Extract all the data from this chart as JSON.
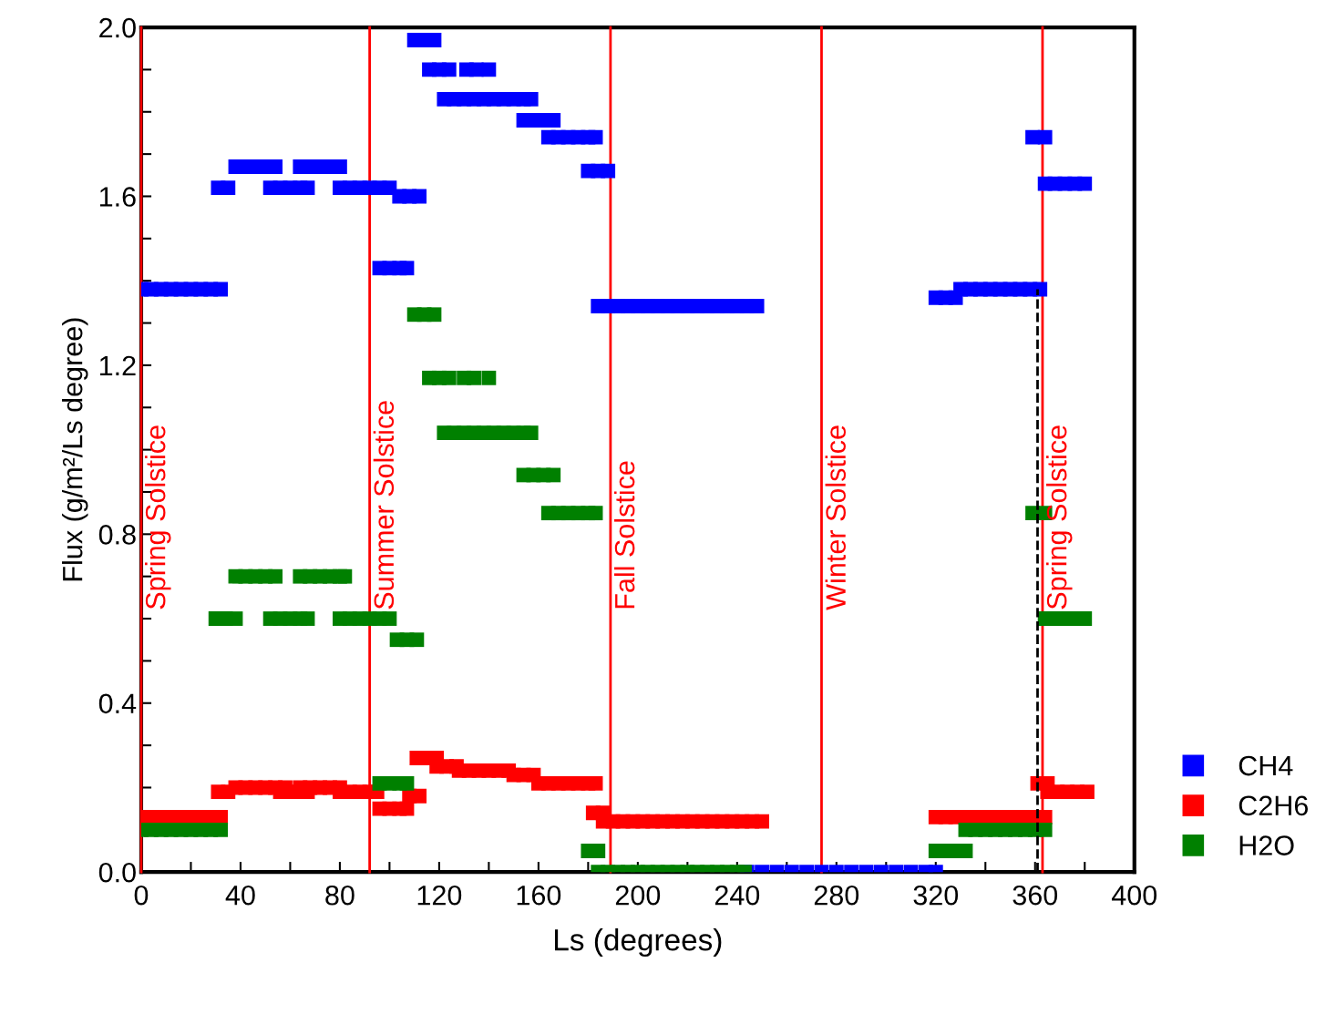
{
  "chart_data": {
    "type": "scatter",
    "xlabel": "Ls (degrees)",
    "ylabel": "Flux (g/m²/Ls degree)",
    "xlim": [
      0,
      400
    ],
    "ylim": [
      0,
      2.0
    ],
    "xticks": [
      0,
      {
        "value": 20,
        "label": null
      },
      40,
      {
        "value": 60,
        "label": null
      },
      80,
      {
        "value": 100,
        "label": null
      },
      120,
      {
        "value": 140,
        "label": null
      },
      160,
      {
        "value": 180,
        "label": null
      },
      200,
      {
        "value": 220,
        "label": null
      },
      240,
      {
        "value": 260,
        "label": null
      },
      280,
      {
        "value": 300,
        "label": null
      },
      320,
      {
        "value": 340,
        "label": null
      },
      360,
      {
        "value": 380,
        "label": null
      },
      400
    ],
    "yticks": [
      {
        "value": 0,
        "label": "0.0"
      },
      {
        "value": 0.1,
        "label": null
      },
      {
        "value": 0.2,
        "label": null
      },
      {
        "value": 0.3,
        "label": null
      },
      {
        "value": 0.4,
        "label": "0.4"
      },
      {
        "value": 0.5,
        "label": null
      },
      {
        "value": 0.6,
        "label": null
      },
      {
        "value": 0.7,
        "label": null
      },
      {
        "value": 0.8,
        "label": "0.8"
      },
      {
        "value": 0.9,
        "label": null
      },
      {
        "value": 1.0,
        "label": null
      },
      {
        "value": 1.1,
        "label": null
      },
      {
        "value": 1.2,
        "label": "1.2"
      },
      {
        "value": 1.3,
        "label": null
      },
      {
        "value": 1.4,
        "label": null
      },
      {
        "value": 1.5,
        "label": null
      },
      {
        "value": 1.6,
        "label": "1.6"
      },
      {
        "value": 1.7,
        "label": null
      },
      {
        "value": 1.8,
        "label": null
      },
      {
        "value": 1.9,
        "label": null
      },
      {
        "value": 2.0,
        "label": "2.0"
      }
    ],
    "grid": false,
    "legend": "bottom right",
    "marker": "square",
    "ref_lines": [
      {
        "axis": "x",
        "value": 0,
        "label": "Spring Solstice",
        "color": "#ff0000"
      },
      {
        "axis": "x",
        "value": 92,
        "label": "Summer Solstice",
        "color": "#ff0000"
      },
      {
        "axis": "x",
        "value": 189,
        "label": "Fall Solstice",
        "color": "#ff0000"
      },
      {
        "axis": "x",
        "value": 274,
        "label": "Winter Solstice",
        "color": "#ff0000"
      },
      {
        "axis": "x",
        "value": 363,
        "label": "Spring Solstice",
        "color": "#ff0000"
      }
    ],
    "series": [
      {
        "name": "CH4",
        "color": "#0000ff",
        "x": [
          0,
          4,
          8,
          12,
          16,
          20,
          24,
          28,
          32,
          31,
          35,
          38,
          42,
          46,
          50,
          54,
          52,
          56,
          60,
          64,
          67,
          64,
          68,
          72,
          76,
          80,
          80,
          84,
          88,
          92,
          96,
          100,
          104,
          108,
          112,
          96,
          100,
          104,
          107,
          110,
          114,
          118,
          116,
          120,
          124,
          131,
          135,
          140,
          122,
          126,
          130,
          134,
          138,
          142,
          146,
          150,
          154,
          157,
          154,
          158,
          162,
          166,
          164,
          168,
          172,
          176,
          180,
          183,
          180,
          184,
          188,
          184,
          188,
          192,
          196,
          200,
          204,
          208,
          212,
          216,
          220,
          224,
          228,
          232,
          236,
          240,
          244,
          248,
          244,
          250,
          256,
          262,
          268,
          274,
          280,
          286,
          292,
          298,
          304,
          310,
          316,
          320,
          320,
          324,
          328,
          330,
          334,
          338,
          342,
          346,
          350,
          354,
          358,
          362,
          359,
          364,
          364,
          368,
          372,
          376,
          380
        ],
        "values": [
          1.38,
          1.38,
          1.38,
          1.38,
          1.38,
          1.38,
          1.38,
          1.38,
          1.38,
          1.62,
          1.62,
          1.67,
          1.67,
          1.67,
          1.67,
          1.67,
          1.62,
          1.62,
          1.62,
          1.62,
          1.62,
          1.67,
          1.67,
          1.67,
          1.67,
          1.67,
          1.62,
          1.62,
          1.62,
          1.62,
          1.62,
          1.62,
          1.6,
          1.6,
          1.6,
          1.43,
          1.43,
          1.43,
          1.43,
          1.97,
          1.97,
          1.97,
          1.9,
          1.9,
          1.9,
          1.9,
          1.9,
          1.9,
          1.83,
          1.83,
          1.83,
          1.83,
          1.83,
          1.83,
          1.83,
          1.83,
          1.83,
          1.83,
          1.78,
          1.78,
          1.78,
          1.78,
          1.74,
          1.74,
          1.74,
          1.74,
          1.74,
          1.74,
          1.66,
          1.66,
          1.66,
          1.34,
          1.34,
          1.34,
          1.34,
          1.34,
          1.34,
          1.34,
          1.34,
          1.34,
          1.34,
          1.34,
          1.34,
          1.34,
          1.34,
          1.34,
          1.34,
          1.34,
          0.0,
          0.0,
          0.0,
          0.0,
          0.0,
          0.0,
          0.0,
          0.0,
          0.0,
          0.0,
          0.0,
          0.0,
          0.0,
          0.0,
          1.36,
          1.36,
          1.36,
          1.38,
          1.38,
          1.38,
          1.38,
          1.38,
          1.38,
          1.38,
          1.38,
          1.38,
          1.74,
          1.74,
          1.63,
          1.63,
          1.63,
          1.63,
          1.63
        ]
      },
      {
        "name": "C2H6",
        "color": "#ff0000",
        "x": [
          0,
          4,
          8,
          12,
          16,
          20,
          24,
          28,
          32,
          31,
          35,
          38,
          42,
          46,
          50,
          54,
          58,
          56,
          60,
          64,
          67,
          64,
          68,
          72,
          76,
          80,
          80,
          84,
          88,
          92,
          95,
          96,
          100,
          104,
          107,
          108,
          112,
          111,
          115,
          119,
          119,
          123,
          127,
          128,
          132,
          136,
          140,
          144,
          148,
          150,
          154,
          158,
          160,
          164,
          168,
          172,
          176,
          180,
          183,
          182,
          186,
          186,
          190,
          194,
          198,
          202,
          206,
          210,
          214,
          218,
          222,
          226,
          230,
          234,
          238,
          242,
          246,
          250,
          320,
          324,
          328,
          332,
          336,
          340,
          344,
          348,
          352,
          356,
          360,
          364,
          361,
          365,
          365,
          369,
          373,
          377,
          381
        ],
        "values": [
          0.13,
          0.13,
          0.13,
          0.13,
          0.13,
          0.13,
          0.13,
          0.13,
          0.13,
          0.19,
          0.19,
          0.2,
          0.2,
          0.2,
          0.2,
          0.2,
          0.2,
          0.19,
          0.19,
          0.19,
          0.19,
          0.2,
          0.2,
          0.2,
          0.2,
          0.2,
          0.19,
          0.19,
          0.19,
          0.19,
          0.19,
          0.15,
          0.15,
          0.15,
          0.15,
          0.18,
          0.18,
          0.27,
          0.27,
          0.27,
          0.25,
          0.25,
          0.25,
          0.24,
          0.24,
          0.24,
          0.24,
          0.24,
          0.24,
          0.23,
          0.23,
          0.23,
          0.21,
          0.21,
          0.21,
          0.21,
          0.21,
          0.21,
          0.21,
          0.14,
          0.14,
          0.12,
          0.12,
          0.12,
          0.12,
          0.12,
          0.12,
          0.12,
          0.12,
          0.12,
          0.12,
          0.12,
          0.12,
          0.12,
          0.12,
          0.12,
          0.12,
          0.12,
          0.13,
          0.13,
          0.13,
          0.13,
          0.13,
          0.13,
          0.13,
          0.13,
          0.13,
          0.13,
          0.13,
          0.13,
          0.21,
          0.21,
          0.19,
          0.19,
          0.19,
          0.19,
          0.19
        ]
      },
      {
        "name": "H2O",
        "color": "#008000",
        "x": [
          0,
          4,
          8,
          12,
          16,
          20,
          24,
          28,
          32,
          30,
          34,
          38,
          38,
          42,
          46,
          50,
          54,
          52,
          56,
          60,
          64,
          67,
          64,
          68,
          72,
          76,
          80,
          82,
          80,
          84,
          88,
          92,
          96,
          100,
          103,
          107,
          111,
          96,
          100,
          104,
          107,
          110,
          114,
          118,
          116,
          120,
          124,
          130,
          134,
          140,
          122,
          126,
          130,
          134,
          138,
          142,
          146,
          150,
          154,
          157,
          154,
          158,
          162,
          166,
          164,
          168,
          172,
          176,
          180,
          183,
          180,
          184,
          184,
          188,
          192,
          196,
          200,
          204,
          208,
          212,
          216,
          220,
          224,
          228,
          232,
          236,
          240,
          243,
          320,
          324,
          328,
          332,
          332,
          336,
          340,
          344,
          348,
          352,
          356,
          360,
          364,
          359,
          364,
          364,
          368,
          372,
          376,
          380
        ],
        "values": [
          0.1,
          0.1,
          0.1,
          0.1,
          0.1,
          0.1,
          0.1,
          0.1,
          0.1,
          0.6,
          0.6,
          0.6,
          0.7,
          0.7,
          0.7,
          0.7,
          0.7,
          0.6,
          0.6,
          0.6,
          0.6,
          0.6,
          0.7,
          0.7,
          0.7,
          0.7,
          0.7,
          0.7,
          0.6,
          0.6,
          0.6,
          0.6,
          0.6,
          0.6,
          0.55,
          0.55,
          0.55,
          0.21,
          0.21,
          0.21,
          0.21,
          1.32,
          1.32,
          1.32,
          1.17,
          1.17,
          1.17,
          1.17,
          1.17,
          1.17,
          1.04,
          1.04,
          1.04,
          1.04,
          1.04,
          1.04,
          1.04,
          1.04,
          1.04,
          1.04,
          0.94,
          0.94,
          0.94,
          0.94,
          0.85,
          0.85,
          0.85,
          0.85,
          0.85,
          0.85,
          0.05,
          0.05,
          0.0,
          0.0,
          0.0,
          0.0,
          0.0,
          0.0,
          0.0,
          0.0,
          0.0,
          0.0,
          0.0,
          0.0,
          0.0,
          0.0,
          0.0,
          0.0,
          0.05,
          0.05,
          0.05,
          0.05,
          0.1,
          0.1,
          0.1,
          0.1,
          0.1,
          0.1,
          0.1,
          0.1,
          0.1,
          0.85,
          0.85,
          0.6,
          0.6,
          0.6,
          0.6,
          0.6
        ]
      },
      {
        "type": "line",
        "color": "#000000",
        "line_style": "dashed",
        "marker": "none",
        "x": [
          361,
          361
        ],
        "values": [
          0.0,
          1.38
        ]
      }
    ]
  }
}
